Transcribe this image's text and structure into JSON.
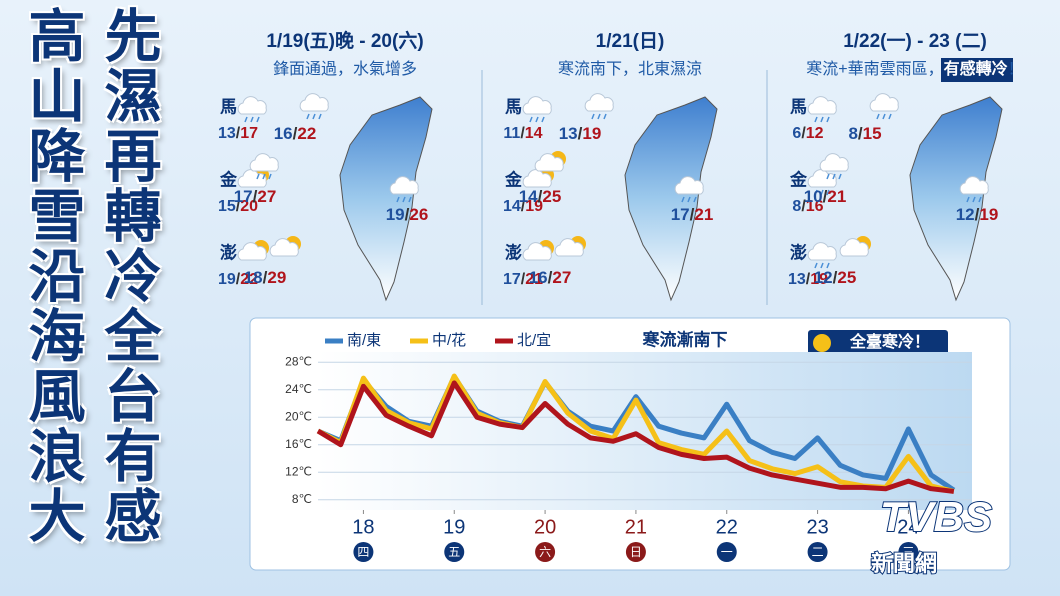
{
  "headline": {
    "left": "高山降雪沿海風浪大",
    "right": "先濕再轉冷全台有感"
  },
  "panels": [
    {
      "title": "1/19(五)晚 - 20(六)",
      "subtitle": "鋒面通過，水氣增多",
      "islands": [
        {
          "name": "馬",
          "temp": "13/17"
        },
        {
          "name": "金",
          "temp": "15/20"
        },
        {
          "name": "澎",
          "temp": "19/22"
        }
      ],
      "cities": [
        "16/22",
        "17/27",
        "19/26",
        "18/29"
      ]
    },
    {
      "title": "1/21(日)",
      "subtitle": "寒流南下，北東濕涼",
      "islands": [
        {
          "name": "馬",
          "temp": "11/14"
        },
        {
          "name": "金",
          "temp": "14/19"
        },
        {
          "name": "澎",
          "temp": "17/21"
        }
      ],
      "cities": [
        "13/19",
        "14/25",
        "17/21",
        "16/27"
      ]
    },
    {
      "title": "1/22(一) - 23 (二)",
      "subtitle": "寒流+華南雲雨區，",
      "highlight": "有感轉冷",
      "subtitle_end": "！",
      "islands": [
        {
          "name": "馬",
          "temp": "6/12"
        },
        {
          "name": "金",
          "temp": "8/16"
        },
        {
          "name": "澎",
          "temp": "13/19"
        }
      ],
      "cities": [
        "8/15",
        "10/21",
        "12/19",
        "12/25"
      ]
    }
  ],
  "chart_data": {
    "type": "line",
    "title": "寒流漸南下",
    "badge": "全臺寒冷！",
    "x": [
      17.5,
      17.75,
      18,
      18.25,
      18.5,
      18.75,
      19,
      19.25,
      19.5,
      19.75,
      20,
      20.25,
      20.5,
      20.75,
      21,
      21.25,
      21.5,
      21.75,
      22,
      22.25,
      22.5,
      22.75,
      23,
      23.25,
      23.5,
      23.75,
      24,
      24.25,
      24.5
    ],
    "series": [
      {
        "name": "南/東",
        "color": "#3a7fc4",
        "values": [
          18,
          16.6,
          25.4,
          21.6,
          19.4,
          18.7,
          25.9,
          20.9,
          19.4,
          18.7,
          25.1,
          20.9,
          18.7,
          18,
          23,
          18.7,
          17.7,
          17,
          21.9,
          16.6,
          14.9,
          14,
          17,
          13,
          11.6,
          11.1,
          18.3,
          11.6,
          9.4
        ]
      },
      {
        "name": "中/花",
        "color": "#f5c018",
        "values": [
          18,
          16.3,
          25.7,
          21,
          19.2,
          18.3,
          26,
          20.6,
          19.2,
          18.5,
          25.2,
          20.6,
          18,
          16.9,
          22.5,
          16.3,
          15.3,
          14.6,
          18,
          13.7,
          12.5,
          11.8,
          12.8,
          10.6,
          10,
          9.8,
          14.3,
          10,
          9.2
        ]
      },
      {
        "name": "北/宜",
        "color": "#b0141c",
        "values": [
          18,
          16,
          24.5,
          20.3,
          18.7,
          17.3,
          25,
          20,
          19,
          18.5,
          22,
          19,
          17,
          16.5,
          17.6,
          15.6,
          14.6,
          14,
          14.2,
          12.6,
          11.6,
          11,
          10.4,
          9.8,
          9.8,
          9.6,
          10.7,
          9.6,
          9.2
        ]
      }
    ],
    "xlim": [
      17.5,
      24.7
    ],
    "xticks": [
      18,
      19,
      20,
      21,
      22,
      23,
      24
    ],
    "weekdays": [
      "四",
      "五",
      "六",
      "日",
      "一",
      "二",
      "三"
    ],
    "ylim": [
      6.5,
      29.5
    ],
    "yticks": [
      {
        "value": 8,
        "label": "8℃"
      },
      {
        "value": 12,
        "label": "12℃"
      },
      {
        "value": 16,
        "label": "16℃"
      },
      {
        "value": 20,
        "label": "20℃"
      },
      {
        "value": 24,
        "label": "24℃"
      },
      {
        "value": 28,
        "label": "28℃"
      }
    ],
    "grid": true
  },
  "brand": {
    "logo": "TVBS",
    "sub": "新聞網"
  }
}
